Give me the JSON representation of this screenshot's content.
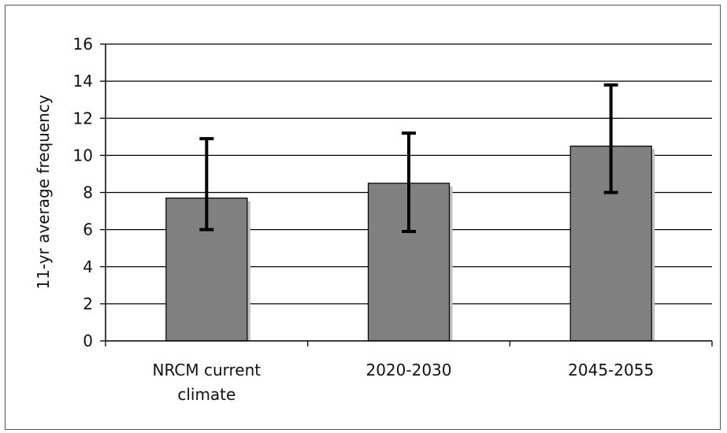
{
  "chart_data": {
    "type": "bar",
    "categories": [
      [
        "NRCM current",
        "climate"
      ],
      [
        "2020-2030"
      ],
      [
        "2045-2055"
      ]
    ],
    "values": [
      7.7,
      8.5,
      10.5
    ],
    "error_low": [
      6.0,
      5.9,
      8.0
    ],
    "error_high": [
      10.9,
      11.2,
      13.8
    ],
    "title": "",
    "xlabel": "",
    "ylabel": "11-yr average frequency",
    "ylim": [
      0,
      16
    ],
    "yticks": [
      0,
      2,
      4,
      6,
      8,
      10,
      12,
      14,
      16
    ],
    "grid": true,
    "legend": "none",
    "colors": {
      "bar": "#808080",
      "bar_shadow": "#c0c0c0",
      "error_bar": "#000000",
      "grid": "#000000",
      "axis": "#000000"
    }
  }
}
